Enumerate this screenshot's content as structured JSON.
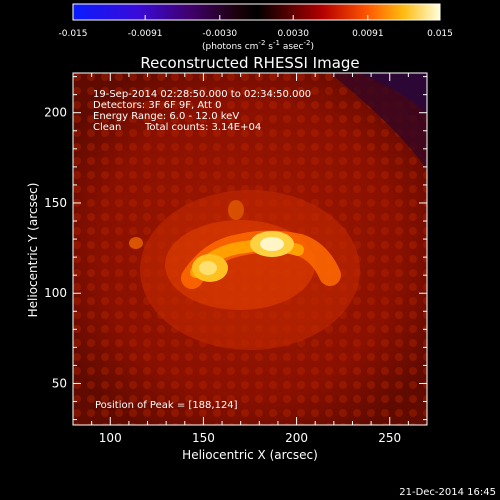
{
  "colorbar": {
    "tick_labels": [
      "-0.015",
      "-0.0091",
      "-0.0030",
      "0.0030",
      "0.0091",
      "0.015"
    ],
    "unit_prefix": "(photons cm",
    "unit_exp1": "-2",
    "unit_mid": " s",
    "unit_exp2": "-1",
    "unit_mid2": " asec",
    "unit_exp3": "-2",
    "unit_suffix": ")"
  },
  "title": "Reconstructed RHESSI Image",
  "annotations": {
    "time_range": "19-Sep-2014 02:28:50.000 to 02:34:50.000",
    "detectors": "Detectors: 3F 6F 9F, Att 0",
    "energy_range": "Energy Range: 6.0 - 12.0 keV",
    "clean_label": "Clean",
    "total_counts": "Total counts: 3.14E+04",
    "peak_position": "Position of Peak = [188,124]"
  },
  "axes": {
    "xlabel": "Heliocentric X (arcsec)",
    "ylabel": "Heliocentric Y (arcsec)",
    "x_ticks": [
      "100",
      "150",
      "200",
      "250"
    ],
    "y_ticks": [
      "50",
      "100",
      "150",
      "200"
    ],
    "x_range": [
      80,
      270
    ],
    "y_range": [
      27,
      222
    ]
  },
  "footer_timestamp": "21-Dec-2014 16:45",
  "colors": {
    "background": "#000000",
    "colormap_low": "#0000ff",
    "colormap_high": "#ffffff",
    "plot_bg": "#7a0c00"
  }
}
